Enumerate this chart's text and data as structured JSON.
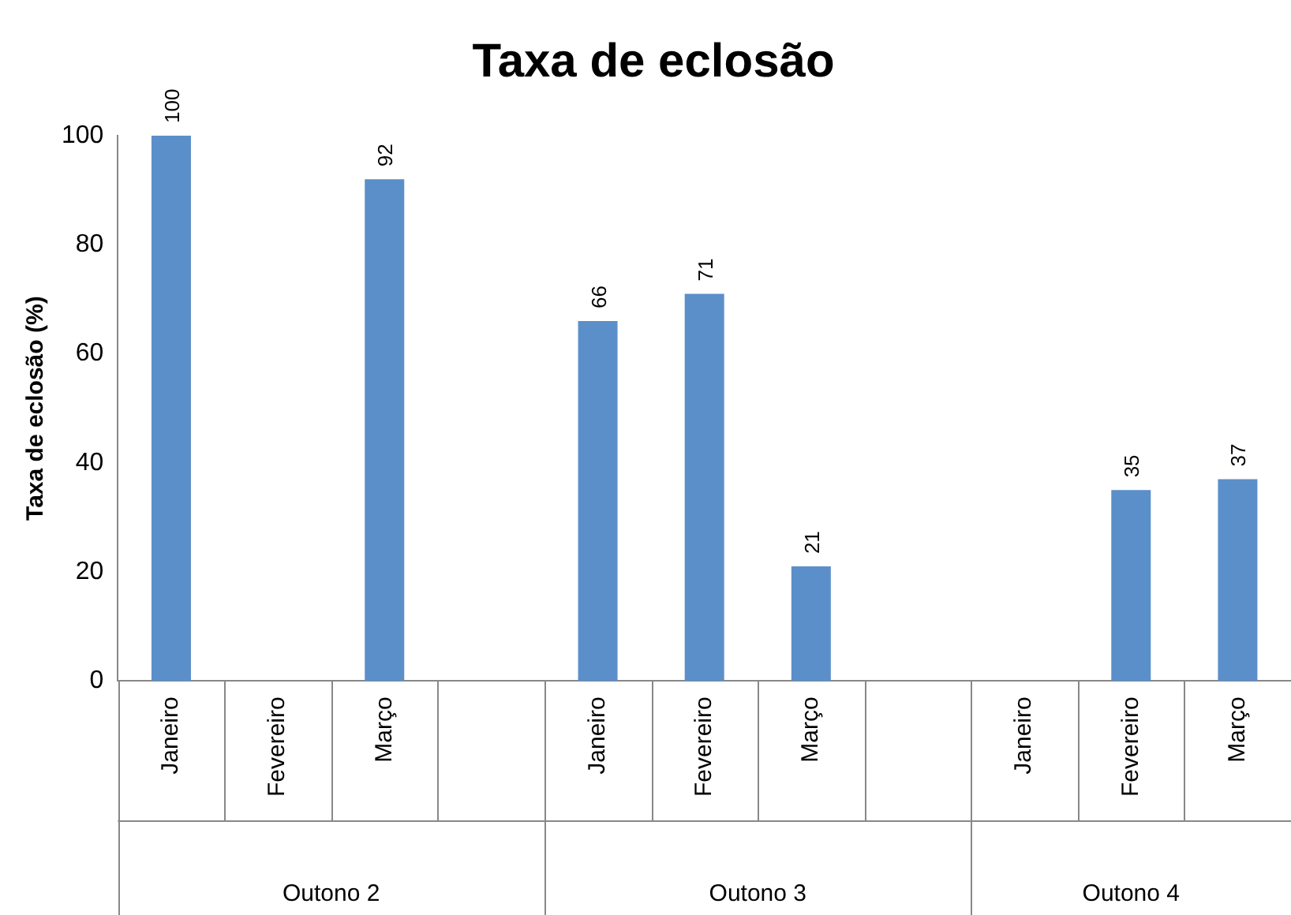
{
  "chart_data": {
    "type": "bar",
    "title": "Taxa de eclosão",
    "ylabel": "Taxa de eclosão (%)",
    "categories": [
      "Janeiro",
      "Fevereiro",
      "Março",
      null,
      "Janeiro",
      "Fevereiro",
      "Março",
      null,
      "Janeiro",
      "Fevereiro",
      "Março"
    ],
    "values": [
      100,
      null,
      92,
      null,
      66,
      71,
      21,
      null,
      null,
      35,
      37
    ],
    "color": "#5b8fc9",
    "ylim": [
      0,
      100
    ],
    "yticks": [
      0,
      20,
      40,
      60,
      80,
      100
    ],
    "grid": false,
    "data_labels": true,
    "annotations": [
      "Outono 2",
      "Outono 3",
      "Outono 4"
    ]
  }
}
